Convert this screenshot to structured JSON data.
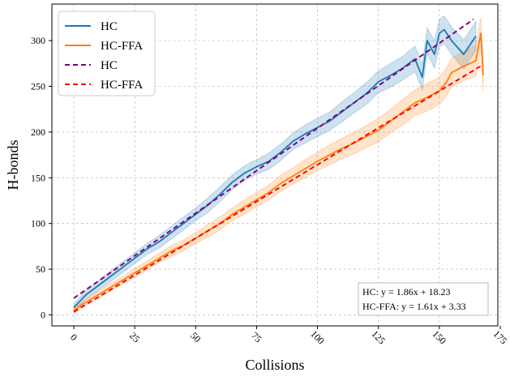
{
  "chart_data": {
    "type": "line",
    "xlabel": "Collisions",
    "ylabel": "H-bonds",
    "xlim": [
      -9,
      174
    ],
    "ylim": [
      -12,
      340
    ],
    "xticks": [
      0,
      25,
      50,
      75,
      100,
      125,
      150,
      175
    ],
    "yticks": [
      0,
      50,
      100,
      150,
      200,
      250,
      300
    ],
    "xtick_rotation": -45,
    "grid": true,
    "grid_style": "dashed",
    "legend_position": "top-left",
    "legend": [
      "HC",
      "HC-FFA",
      "HC",
      "HC-FFA"
    ],
    "series": [
      {
        "name": "HC",
        "style": "solid",
        "color": "#1f77b4",
        "band_color": "#1f77b4",
        "x": [
          0,
          5,
          10,
          15,
          20,
          25,
          30,
          35,
          40,
          45,
          50,
          55,
          60,
          65,
          70,
          75,
          80,
          85,
          90,
          95,
          100,
          105,
          110,
          115,
          120,
          125,
          130,
          135,
          140,
          143,
          145,
          148,
          150,
          152,
          155,
          160,
          165
        ],
        "y": [
          8,
          22,
          32,
          42,
          52,
          62,
          72,
          80,
          90,
          100,
          110,
          120,
          132,
          145,
          155,
          162,
          168,
          178,
          190,
          198,
          205,
          212,
          222,
          232,
          242,
          255,
          262,
          270,
          280,
          260,
          300,
          285,
          308,
          312,
          300,
          285,
          305
        ],
        "band": [
          4,
          5,
          5,
          6,
          6,
          6,
          6,
          7,
          7,
          7,
          7,
          8,
          8,
          8,
          8,
          8,
          9,
          9,
          9,
          10,
          10,
          10,
          11,
          11,
          12,
          12,
          13,
          13,
          14,
          14,
          14,
          15,
          15,
          15,
          15,
          16,
          16
        ]
      },
      {
        "name": "HC-FFA",
        "style": "solid",
        "color": "#ff7f0e",
        "band_color": "#ff7f0e",
        "x": [
          0,
          5,
          10,
          15,
          20,
          25,
          30,
          35,
          40,
          45,
          50,
          55,
          60,
          65,
          70,
          75,
          80,
          85,
          90,
          95,
          100,
          105,
          110,
          115,
          120,
          125,
          130,
          135,
          140,
          145,
          150,
          153,
          155,
          160,
          165,
          167,
          168
        ],
        "y": [
          5,
          14,
          22,
          30,
          38,
          46,
          54,
          62,
          70,
          76,
          84,
          92,
          100,
          110,
          118,
          126,
          134,
          144,
          152,
          160,
          168,
          175,
          182,
          188,
          195,
          202,
          212,
          222,
          232,
          238,
          245,
          255,
          265,
          272,
          278,
          308,
          262
        ],
        "band": [
          3,
          3,
          4,
          4,
          4,
          5,
          5,
          5,
          6,
          6,
          6,
          7,
          7,
          7,
          8,
          8,
          8,
          9,
          9,
          10,
          10,
          11,
          11,
          12,
          12,
          13,
          13,
          14,
          14,
          15,
          15,
          15,
          16,
          16,
          17,
          17,
          17
        ]
      },
      {
        "name": "HC",
        "style": "dashed",
        "color": "#800080",
        "fit": {
          "slope": 1.86,
          "intercept": 18.23,
          "x_range": [
            0,
            164
          ]
        }
      },
      {
        "name": "HC-FFA",
        "style": "dashed",
        "color": "#ff0000",
        "fit": {
          "slope": 1.61,
          "intercept": 3.33,
          "x_range": [
            0,
            168
          ]
        }
      }
    ],
    "annotations": [
      "HC: y = 1.86x + 18.23",
      "HC-FFA: y = 1.61x + 3.33"
    ]
  }
}
